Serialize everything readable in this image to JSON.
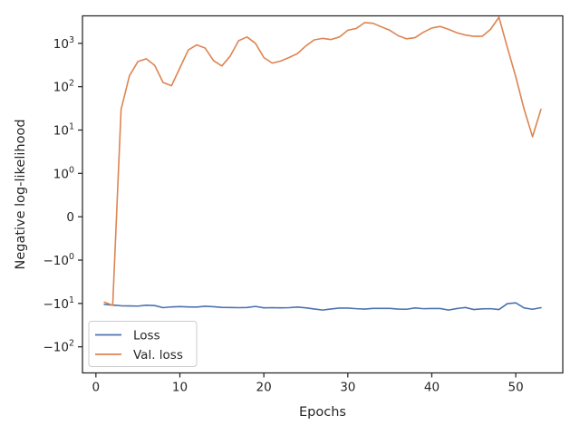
{
  "chart_data": {
    "type": "line",
    "xlabel": "Epochs",
    "ylabel": "Negative log-likelihood",
    "yscale": "symlog",
    "grid": false,
    "legend_position": "lower-left",
    "xlim": [
      -1.6,
      55.6
    ],
    "ylim": [
      -400,
      4300
    ],
    "x_ticks": [
      0,
      10,
      20,
      30,
      40,
      50
    ],
    "x_tick_labels": [
      "0",
      "10",
      "20",
      "30",
      "40",
      "50"
    ],
    "y_ticks": [
      {
        "value": 1000,
        "base": "10",
        "exp": "3",
        "sign": ""
      },
      {
        "value": 100,
        "base": "10",
        "exp": "2",
        "sign": ""
      },
      {
        "value": 10,
        "base": "10",
        "exp": "1",
        "sign": ""
      },
      {
        "value": 1,
        "base": "10",
        "exp": "0",
        "sign": ""
      },
      {
        "value": 0,
        "base": "0",
        "exp": "",
        "sign": ""
      },
      {
        "value": -1,
        "base": "10",
        "exp": "0",
        "sign": "−"
      },
      {
        "value": -10,
        "base": "10",
        "exp": "1",
        "sign": "−"
      },
      {
        "value": -100,
        "base": "10",
        "exp": "2",
        "sign": "−"
      }
    ],
    "series": [
      {
        "name": "Loss",
        "color": "#4c72b0",
        "x": [
          1,
          2,
          3,
          4,
          5,
          6,
          7,
          8,
          9,
          10,
          11,
          12,
          13,
          14,
          15,
          16,
          17,
          18,
          19,
          20,
          21,
          22,
          23,
          24,
          25,
          26,
          27,
          28,
          29,
          30,
          31,
          32,
          33,
          34,
          35,
          36,
          37,
          38,
          39,
          40,
          41,
          42,
          43,
          44,
          45,
          46,
          47,
          48,
          49,
          50,
          51,
          52,
          53
        ],
        "values": [
          -10.5,
          -10.9,
          -11.3,
          -11.4,
          -11.5,
          -11.0,
          -11.2,
          -12.5,
          -12.0,
          -11.8,
          -12.0,
          -12.1,
          -11.6,
          -11.9,
          -12.3,
          -12.4,
          -12.5,
          -12.4,
          -11.7,
          -12.6,
          -12.5,
          -12.6,
          -12.5,
          -12.1,
          -12.6,
          -13.4,
          -14.2,
          -13.4,
          -12.8,
          -12.8,
          -13.2,
          -13.5,
          -13.0,
          -13.0,
          -13.0,
          -13.5,
          -13.6,
          -12.7,
          -13.2,
          -13.1,
          -13.1,
          -14.2,
          -13.1,
          -12.4,
          -13.8,
          -13.3,
          -13.2,
          -13.8,
          -10.1,
          -9.7,
          -12.7,
          -13.6,
          -12.5
        ]
      },
      {
        "name": "Val. loss",
        "color": "#dd8452",
        "x": [
          1,
          2,
          3,
          4,
          5,
          6,
          7,
          8,
          9,
          10,
          11,
          12,
          13,
          14,
          15,
          16,
          17,
          18,
          19,
          20,
          21,
          22,
          23,
          24,
          25,
          26,
          27,
          28,
          29,
          30,
          31,
          32,
          33,
          34,
          35,
          36,
          37,
          38,
          39,
          40,
          41,
          42,
          43,
          44,
          45,
          46,
          47,
          48,
          49,
          50,
          51,
          52,
          53
        ],
        "values": [
          -9.3,
          -11.0,
          30,
          180,
          380,
          440,
          310,
          125,
          105,
          270,
          700,
          920,
          780,
          400,
          300,
          510,
          1150,
          1400,
          1000,
          470,
          350,
          390,
          470,
          580,
          870,
          1200,
          1300,
          1220,
          1400,
          2000,
          2200,
          3000,
          2900,
          2400,
          2000,
          1500,
          1270,
          1350,
          1800,
          2250,
          2450,
          2100,
          1750,
          1550,
          1450,
          1450,
          2100,
          4000,
          800,
          170,
          30,
          7,
          30
        ]
      }
    ]
  }
}
